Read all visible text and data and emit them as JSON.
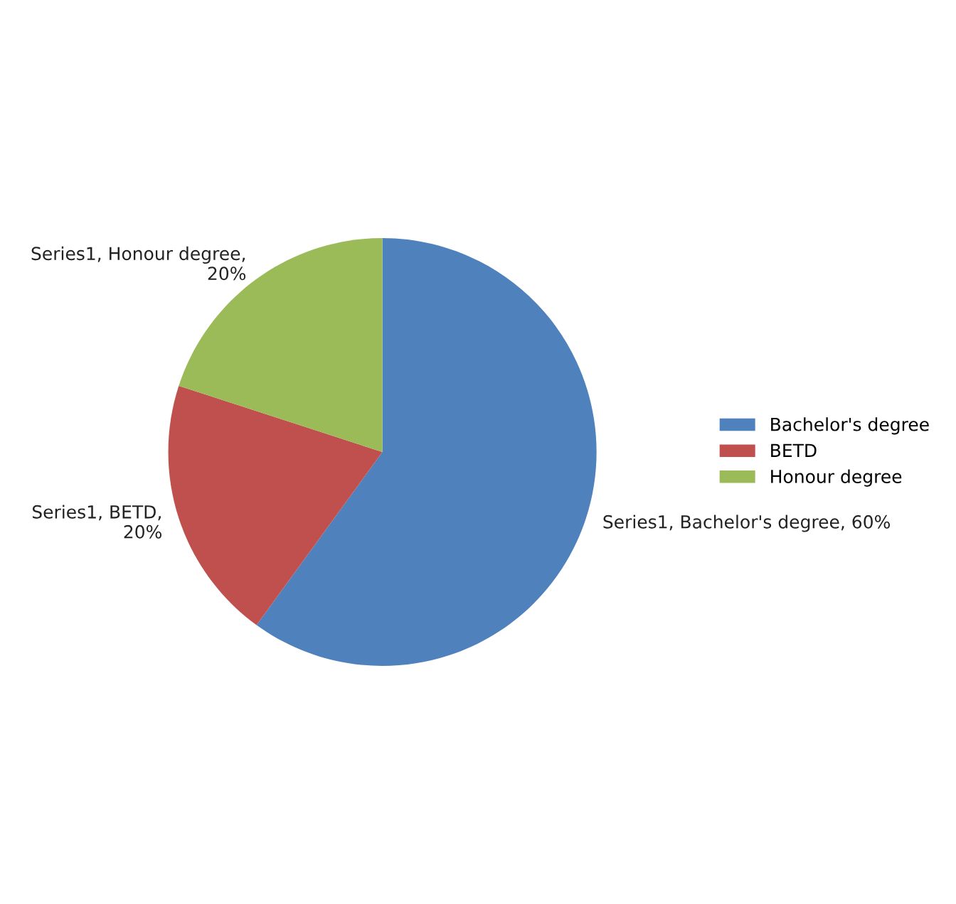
{
  "chart_data": {
    "type": "pie",
    "categories": [
      "Bachelor's degree",
      "BETD",
      "Honour degree"
    ],
    "values": [
      60,
      20,
      20
    ],
    "colors": [
      "#4f81bd",
      "#c0504d",
      "#9bbb59"
    ],
    "value_labels": [
      "Series1, Bachelor's degree, 60%",
      "Series1, BETD, 20%",
      "Series1, Honour degree, 20%"
    ],
    "legend": "right"
  }
}
